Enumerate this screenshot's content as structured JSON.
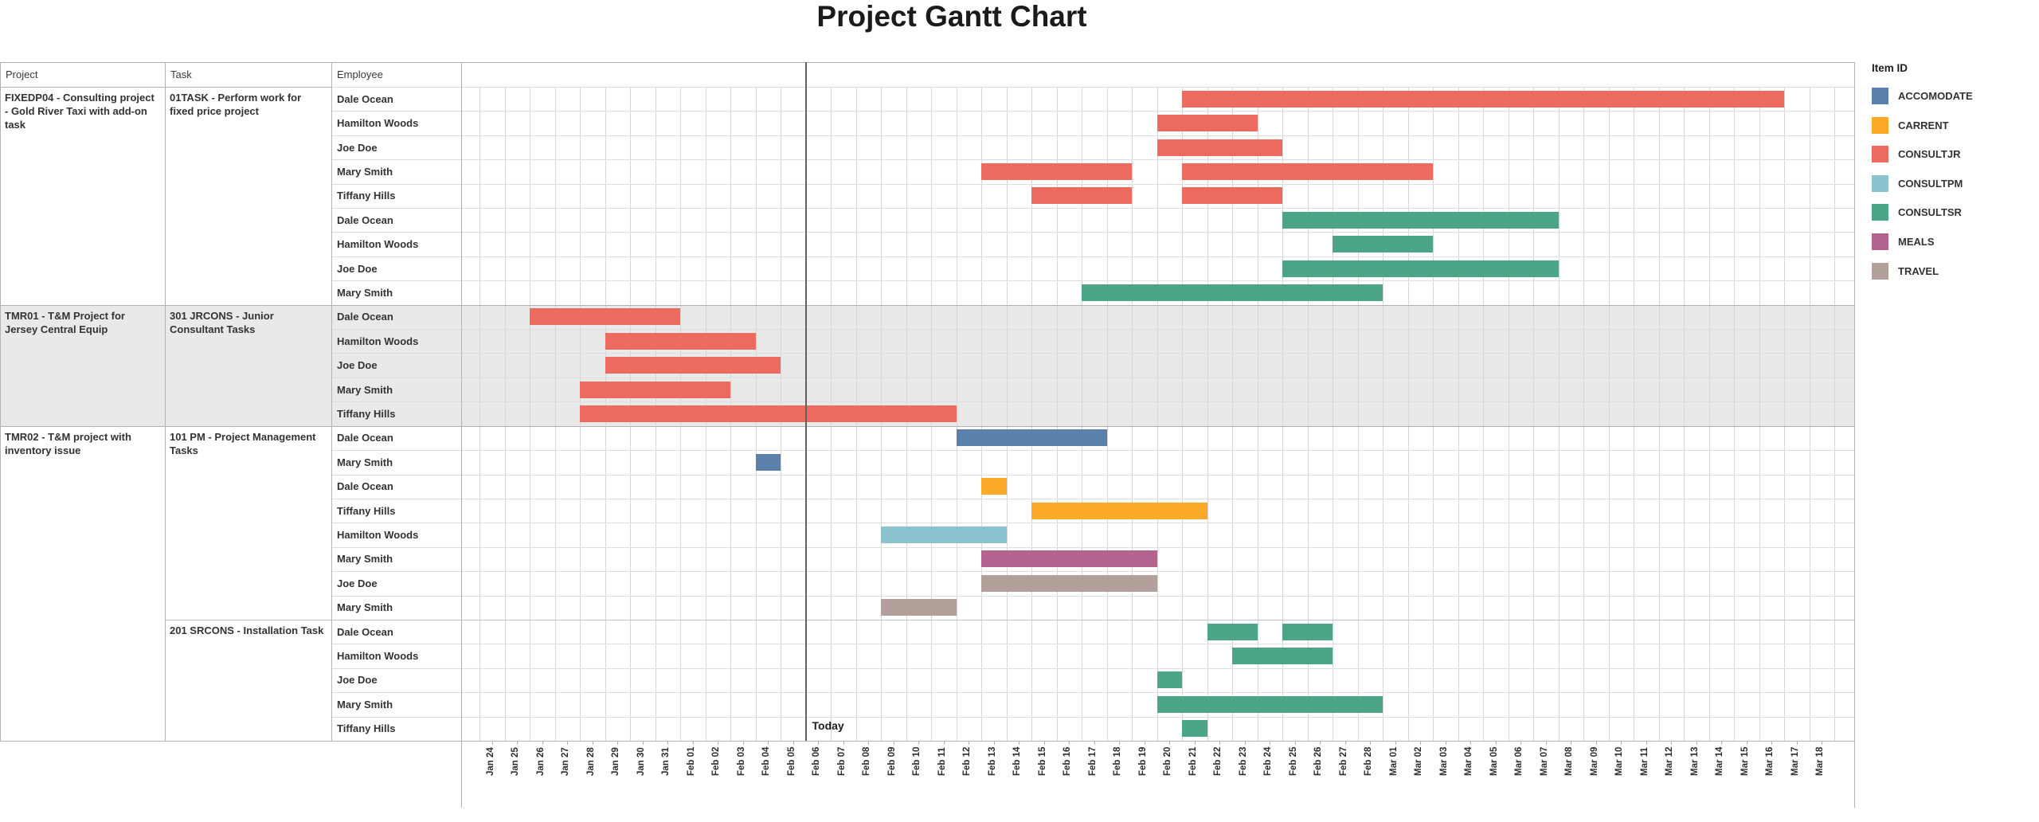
{
  "title": "Project Gantt Chart",
  "today_label": "Today",
  "table_headers": [
    "Project",
    "Task",
    "Employee"
  ],
  "legend": {
    "title": "Item ID",
    "items": [
      {
        "label": "ACCOMODATE",
        "color": "#5B80AB"
      },
      {
        "label": "CARRENT",
        "color": "#FBA929"
      },
      {
        "label": "CONSULTJR",
        "color": "#ED6A5F"
      },
      {
        "label": "CONSULTPM",
        "color": "#8BC4CE"
      },
      {
        "label": "CONSULTSR",
        "color": "#4CA585"
      },
      {
        "label": "MEALS",
        "color": "#B4638F"
      },
      {
        "label": "TRAVEL",
        "color": "#B3A09A"
      }
    ]
  },
  "chart_data": {
    "type": "bar",
    "subtype": "gantt",
    "title": "Project Gantt Chart",
    "xlabel": "",
    "ylabel": "",
    "grid": true,
    "legend_position": "top-right",
    "axis_labels": [
      "Jan 24",
      "Jan 25",
      "Jan 26",
      "Jan 27",
      "Jan 28",
      "Jan 29",
      "Jan 30",
      "Jan 31",
      "Feb 01",
      "Feb 02",
      "Feb 03",
      "Feb 04",
      "Feb 05",
      "Feb 06",
      "Feb 07",
      "Feb 08",
      "Feb 09",
      "Feb 10",
      "Feb 11",
      "Feb 12",
      "Feb 13",
      "Feb 14",
      "Feb 15",
      "Feb 16",
      "Feb 17",
      "Feb 18",
      "Feb 19",
      "Feb 20",
      "Feb 21",
      "Feb 22",
      "Feb 23",
      "Feb 24",
      "Feb 25",
      "Feb 26",
      "Feb 27",
      "Feb 28",
      "Mar 01",
      "Mar 02",
      "Mar 03",
      "Mar 04",
      "Mar 05",
      "Mar 06",
      "Mar 07",
      "Mar 08",
      "Mar 09",
      "Mar 10",
      "Mar 11",
      "Mar 12",
      "Mar 13",
      "Mar 14",
      "Mar 15",
      "Mar 16",
      "Mar 17",
      "Mar 18"
    ],
    "today_line_at": "Feb 06",
    "projects": [
      {
        "name": "FIXEDP04 - Consulting project - Gold River Taxi with add-on task",
        "shaded": false,
        "tasks": [
          {
            "name": "01TASK - Perform work for fixed price project",
            "rows": [
              {
                "employee": "Dale Ocean",
                "bars": [
                  {
                    "item": "CONSULTJR",
                    "start": "Feb 21",
                    "end": "Mar 17"
                  }
                ]
              },
              {
                "employee": "Hamilton Woods",
                "bars": [
                  {
                    "item": "CONSULTJR",
                    "start": "Feb 20",
                    "end": "Feb 24"
                  }
                ]
              },
              {
                "employee": "Joe Doe",
                "bars": [
                  {
                    "item": "CONSULTJR",
                    "start": "Feb 20",
                    "end": "Feb 25"
                  }
                ]
              },
              {
                "employee": "Mary Smith",
                "bars": [
                  {
                    "item": "CONSULTJR",
                    "start": "Feb 13",
                    "end": "Feb 19"
                  },
                  {
                    "item": "CONSULTJR",
                    "start": "Feb 21",
                    "end": "Mar 03"
                  }
                ]
              },
              {
                "employee": "Tiffany Hills",
                "bars": [
                  {
                    "item": "CONSULTJR",
                    "start": "Feb 15",
                    "end": "Feb 19"
                  },
                  {
                    "item": "CONSULTJR",
                    "start": "Feb 21",
                    "end": "Feb 25"
                  }
                ]
              },
              {
                "employee": "Dale Ocean",
                "bars": [
                  {
                    "item": "CONSULTSR",
                    "start": "Feb 25",
                    "end": "Mar 08"
                  }
                ]
              },
              {
                "employee": "Hamilton Woods",
                "bars": [
                  {
                    "item": "CONSULTSR",
                    "start": "Feb 27",
                    "end": "Mar 03"
                  }
                ]
              },
              {
                "employee": "Joe Doe",
                "bars": [
                  {
                    "item": "CONSULTSR",
                    "start": "Feb 25",
                    "end": "Mar 08"
                  }
                ]
              },
              {
                "employee": "Mary Smith",
                "bars": [
                  {
                    "item": "CONSULTSR",
                    "start": "Feb 17",
                    "end": "Mar 01"
                  }
                ]
              }
            ]
          }
        ]
      },
      {
        "name": "TMR01 - T&M Project for Jersey Central Equip",
        "shaded": true,
        "tasks": [
          {
            "name": "301 JRCONS - Junior Consultant Tasks",
            "rows": [
              {
                "employee": "Dale Ocean",
                "bars": [
                  {
                    "item": "CONSULTJR",
                    "start": "Jan 26",
                    "end": "Feb 01"
                  }
                ]
              },
              {
                "employee": "Hamilton Woods",
                "bars": [
                  {
                    "item": "CONSULTJR",
                    "start": "Jan 29",
                    "end": "Feb 04"
                  }
                ]
              },
              {
                "employee": "Joe Doe",
                "bars": [
                  {
                    "item": "CONSULTJR",
                    "start": "Jan 29",
                    "end": "Feb 05"
                  }
                ]
              },
              {
                "employee": "Mary Smith",
                "bars": [
                  {
                    "item": "CONSULTJR",
                    "start": "Jan 28",
                    "end": "Feb 03"
                  }
                ]
              },
              {
                "employee": "Tiffany Hills",
                "bars": [
                  {
                    "item": "CONSULTJR",
                    "start": "Jan 28",
                    "end": "Feb 12"
                  }
                ]
              }
            ]
          }
        ]
      },
      {
        "name": "TMR02 - T&M project with inventory issue",
        "shaded": false,
        "tasks": [
          {
            "name": "101 PM - Project Management Tasks",
            "rows": [
              {
                "employee": "Dale Ocean",
                "bars": [
                  {
                    "item": "ACCOMODATE",
                    "start": "Feb 12",
                    "end": "Feb 18"
                  }
                ]
              },
              {
                "employee": "Mary Smith",
                "bars": [
                  {
                    "item": "ACCOMODATE",
                    "start": "Feb 04",
                    "end": "Feb 05"
                  }
                ]
              },
              {
                "employee": "Dale Ocean",
                "bars": [
                  {
                    "item": "CARRENT",
                    "start": "Feb 13",
                    "end": "Feb 14"
                  }
                ]
              },
              {
                "employee": "Tiffany Hills",
                "bars": [
                  {
                    "item": "CARRENT",
                    "start": "Feb 15",
                    "end": "Feb 22"
                  }
                ]
              },
              {
                "employee": "Hamilton Woods",
                "bars": [
                  {
                    "item": "CONSULTPM",
                    "start": "Feb 09",
                    "end": "Feb 14"
                  }
                ]
              },
              {
                "employee": "Mary Smith",
                "bars": [
                  {
                    "item": "MEALS",
                    "start": "Feb 13",
                    "end": "Feb 20"
                  }
                ]
              },
              {
                "employee": "Joe Doe",
                "bars": [
                  {
                    "item": "TRAVEL",
                    "start": "Feb 13",
                    "end": "Feb 20"
                  }
                ]
              },
              {
                "employee": "Mary Smith",
                "bars": [
                  {
                    "item": "TRAVEL",
                    "start": "Feb 09",
                    "end": "Feb 12"
                  }
                ]
              }
            ]
          },
          {
            "name": "201 SRCONS - Installation Task",
            "rows": [
              {
                "employee": "Dale Ocean",
                "bars": [
                  {
                    "item": "CONSULTSR",
                    "start": "Feb 22",
                    "end": "Feb 24"
                  },
                  {
                    "item": "CONSULTSR",
                    "start": "Feb 25",
                    "end": "Feb 27"
                  }
                ]
              },
              {
                "employee": "Hamilton Woods",
                "bars": [
                  {
                    "item": "CONSULTSR",
                    "start": "Feb 23",
                    "end": "Feb 27"
                  }
                ]
              },
              {
                "employee": "Joe Doe",
                "bars": [
                  {
                    "item": "CONSULTSR",
                    "start": "Feb 20",
                    "end": "Feb 21"
                  }
                ]
              },
              {
                "employee": "Mary Smith",
                "bars": [
                  {
                    "item": "CONSULTSR",
                    "start": "Feb 20",
                    "end": "Mar 01"
                  }
                ]
              },
              {
                "employee": "Tiffany Hills",
                "bars": [
                  {
                    "item": "CONSULTSR",
                    "start": "Feb 21",
                    "end": "Feb 22"
                  }
                ]
              }
            ]
          }
        ]
      }
    ]
  }
}
